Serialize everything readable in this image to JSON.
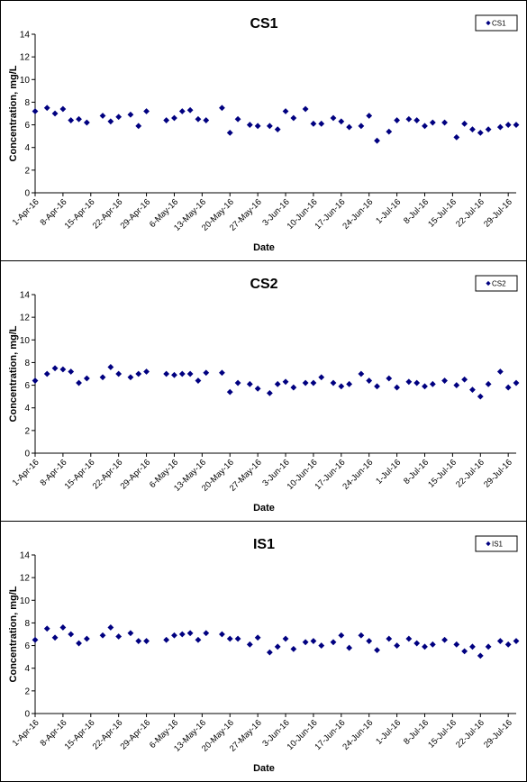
{
  "chart_data": [
    {
      "type": "scatter",
      "title": "CS1",
      "xlabel": "Date",
      "ylabel": "Concentration, mg/L",
      "ylim": [
        0,
        14
      ],
      "yticks": [
        0,
        2,
        4,
        6,
        8,
        10,
        12,
        14
      ],
      "xlim": [
        "2016-04-01",
        "2016-07-31"
      ],
      "xtick_labels": [
        "1-Apr-16",
        "8-Apr-16",
        "15-Apr-16",
        "22-Apr-16",
        "29-Apr-16",
        "6-May-16",
        "13-May-16",
        "20-May-16",
        "27-May-16",
        "3-Jun-16",
        "10-Jun-16",
        "17-Jun-16",
        "24-Jun-16",
        "1-Jul-16",
        "8-Jul-16",
        "15-Jul-16",
        "22-Jul-16",
        "29-Jul-16"
      ],
      "grid": false,
      "legend_position": "top-right",
      "marker": "diamond",
      "color": "#000080",
      "series": [
        {
          "name": "CS1",
          "x": [
            "2016-04-01",
            "2016-04-04",
            "2016-04-06",
            "2016-04-08",
            "2016-04-10",
            "2016-04-12",
            "2016-04-14",
            "2016-04-18",
            "2016-04-20",
            "2016-04-22",
            "2016-04-25",
            "2016-04-27",
            "2016-04-29",
            "2016-05-04",
            "2016-05-06",
            "2016-05-08",
            "2016-05-10",
            "2016-05-12",
            "2016-05-14",
            "2016-05-18",
            "2016-05-20",
            "2016-05-22",
            "2016-05-25",
            "2016-05-27",
            "2016-05-30",
            "2016-06-01",
            "2016-06-03",
            "2016-06-05",
            "2016-06-08",
            "2016-06-10",
            "2016-06-12",
            "2016-06-15",
            "2016-06-17",
            "2016-06-19",
            "2016-06-22",
            "2016-06-24",
            "2016-06-26",
            "2016-06-29",
            "2016-07-01",
            "2016-07-04",
            "2016-07-06",
            "2016-07-08",
            "2016-07-10",
            "2016-07-13",
            "2016-07-16",
            "2016-07-18",
            "2016-07-20",
            "2016-07-22",
            "2016-07-24",
            "2016-07-27",
            "2016-07-29",
            "2016-07-31"
          ],
          "values": [
            7.2,
            7.5,
            7.0,
            7.4,
            6.4,
            6.5,
            6.2,
            6.8,
            6.3,
            6.7,
            6.9,
            5.9,
            7.2,
            6.4,
            6.6,
            7.2,
            7.3,
            6.5,
            6.4,
            7.5,
            5.3,
            6.5,
            6.0,
            5.9,
            5.9,
            5.6,
            7.2,
            6.6,
            7.4,
            6.1,
            6.1,
            6.6,
            6.3,
            5.8,
            5.9,
            6.8,
            4.6,
            5.4,
            6.4,
            6.5,
            6.4,
            5.9,
            6.2,
            6.2,
            4.9,
            6.1,
            5.6,
            5.3,
            5.6,
            5.8,
            6.0,
            6.0
          ]
        }
      ]
    },
    {
      "type": "scatter",
      "title": "CS2",
      "xlabel": "Date",
      "ylabel": "Concentration, mg/L",
      "ylim": [
        0,
        14
      ],
      "yticks": [
        0,
        2,
        4,
        6,
        8,
        10,
        12,
        14
      ],
      "xlim": [
        "2016-04-01",
        "2016-07-31"
      ],
      "xtick_labels": [
        "1-Apr-16",
        "8-Apr-16",
        "15-Apr-16",
        "22-Apr-16",
        "29-Apr-16",
        "6-May-16",
        "13-May-16",
        "20-May-16",
        "27-May-16",
        "3-Jun-16",
        "10-Jun-16",
        "17-Jun-16",
        "24-Jun-16",
        "1-Jul-16",
        "8-Jul-16",
        "15-Jul-16",
        "22-Jul-16",
        "29-Jul-16"
      ],
      "grid": false,
      "legend_position": "top-right",
      "marker": "diamond",
      "color": "#000080",
      "series": [
        {
          "name": "CS2",
          "x": [
            "2016-04-01",
            "2016-04-04",
            "2016-04-06",
            "2016-04-08",
            "2016-04-10",
            "2016-04-12",
            "2016-04-14",
            "2016-04-18",
            "2016-04-20",
            "2016-04-22",
            "2016-04-25",
            "2016-04-27",
            "2016-04-29",
            "2016-05-04",
            "2016-05-06",
            "2016-05-08",
            "2016-05-10",
            "2016-05-12",
            "2016-05-14",
            "2016-05-18",
            "2016-05-20",
            "2016-05-22",
            "2016-05-25",
            "2016-05-27",
            "2016-05-30",
            "2016-06-01",
            "2016-06-03",
            "2016-06-05",
            "2016-06-08",
            "2016-06-10",
            "2016-06-12",
            "2016-06-15",
            "2016-06-17",
            "2016-06-19",
            "2016-06-22",
            "2016-06-24",
            "2016-06-26",
            "2016-06-29",
            "2016-07-01",
            "2016-07-04",
            "2016-07-06",
            "2016-07-08",
            "2016-07-10",
            "2016-07-13",
            "2016-07-16",
            "2016-07-18",
            "2016-07-20",
            "2016-07-22",
            "2016-07-24",
            "2016-07-27",
            "2016-07-29",
            "2016-07-31"
          ],
          "values": [
            6.4,
            7.0,
            7.5,
            7.4,
            7.2,
            6.2,
            6.6,
            6.7,
            7.6,
            7.0,
            6.7,
            7.0,
            7.2,
            7.0,
            6.9,
            7.0,
            7.0,
            6.4,
            7.1,
            7.1,
            5.4,
            6.2,
            6.1,
            5.7,
            5.3,
            6.1,
            6.3,
            5.8,
            6.2,
            6.2,
            6.7,
            6.2,
            5.9,
            6.1,
            7.0,
            6.4,
            5.9,
            6.6,
            5.8,
            6.3,
            6.2,
            5.9,
            6.1,
            6.4,
            6.0,
            6.5,
            5.6,
            5.0,
            6.1,
            7.2,
            5.8,
            6.2
          ]
        }
      ]
    },
    {
      "type": "scatter",
      "title": "IS1",
      "xlabel": "Date",
      "ylabel": "Concentration, mg/L",
      "ylim": [
        0,
        14
      ],
      "yticks": [
        0,
        2,
        4,
        6,
        8,
        10,
        12,
        14
      ],
      "xlim": [
        "2016-04-01",
        "2016-07-31"
      ],
      "xtick_labels": [
        "1-Apr-16",
        "8-Apr-16",
        "15-Apr-16",
        "22-Apr-16",
        "29-Apr-16",
        "6-May-16",
        "13-May-16",
        "20-May-16",
        "27-May-16",
        "3-Jun-16",
        "10-Jun-16",
        "17-Jun-16",
        "24-Jun-16",
        "1-Jul-16",
        "8-Jul-16",
        "15-Jul-16",
        "22-Jul-16",
        "29-Jul-16"
      ],
      "grid": false,
      "legend_position": "top-right",
      "marker": "diamond",
      "color": "#000080",
      "series": [
        {
          "name": "IS1",
          "x": [
            "2016-04-01",
            "2016-04-04",
            "2016-04-06",
            "2016-04-08",
            "2016-04-10",
            "2016-04-12",
            "2016-04-14",
            "2016-04-18",
            "2016-04-20",
            "2016-04-22",
            "2016-04-25",
            "2016-04-27",
            "2016-04-29",
            "2016-05-04",
            "2016-05-06",
            "2016-05-08",
            "2016-05-10",
            "2016-05-12",
            "2016-05-14",
            "2016-05-18",
            "2016-05-20",
            "2016-05-22",
            "2016-05-25",
            "2016-05-27",
            "2016-05-30",
            "2016-06-01",
            "2016-06-03",
            "2016-06-05",
            "2016-06-08",
            "2016-06-10",
            "2016-06-12",
            "2016-06-15",
            "2016-06-17",
            "2016-06-19",
            "2016-06-22",
            "2016-06-24",
            "2016-06-26",
            "2016-06-29",
            "2016-07-01",
            "2016-07-04",
            "2016-07-06",
            "2016-07-08",
            "2016-07-10",
            "2016-07-13",
            "2016-07-16",
            "2016-07-18",
            "2016-07-20",
            "2016-07-22",
            "2016-07-24",
            "2016-07-27",
            "2016-07-29",
            "2016-07-31"
          ],
          "values": [
            6.5,
            7.5,
            6.7,
            7.6,
            7.0,
            6.2,
            6.6,
            6.9,
            7.6,
            6.8,
            7.1,
            6.4,
            6.4,
            6.5,
            6.9,
            7.0,
            7.1,
            6.5,
            7.1,
            7.0,
            6.6,
            6.6,
            6.1,
            6.7,
            5.4,
            5.9,
            6.6,
            5.7,
            6.3,
            6.4,
            6.0,
            6.3,
            6.9,
            5.8,
            6.9,
            6.4,
            5.6,
            6.6,
            6.0,
            6.6,
            6.2,
            5.9,
            6.1,
            6.5,
            6.1,
            5.5,
            5.9,
            5.1,
            5.9,
            6.4,
            6.1,
            6.4
          ]
        }
      ]
    }
  ]
}
